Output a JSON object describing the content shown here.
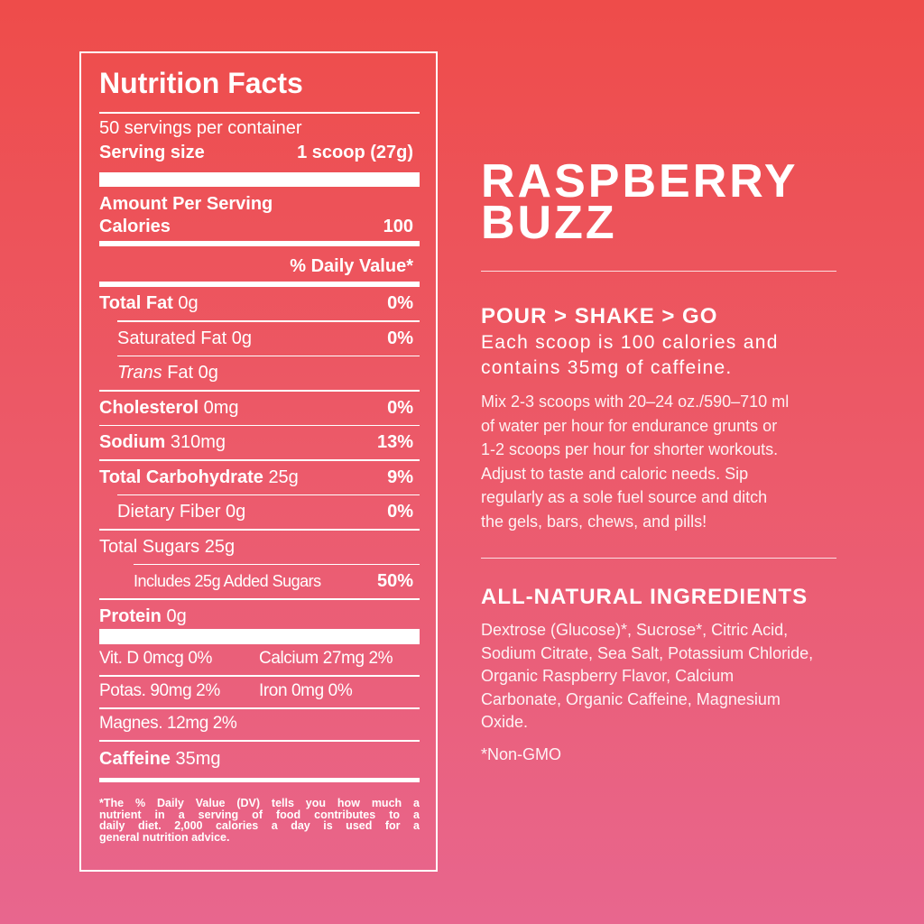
{
  "label": {
    "title": "Nutrition Facts",
    "servings": "50 servings per container",
    "serving_size_label": "Serving size",
    "serving_size": "1 scoop (27g)",
    "amount_per_serving": "Amount Per Serving",
    "calories_label": "Calories",
    "calories": "100",
    "daily_value_header": "% Daily Value*",
    "nutrients": [
      {
        "name": "Total Fat",
        "amount": "0g",
        "dv": "0%"
      },
      {
        "name": "Saturated Fat",
        "amount": "0g",
        "dv": "0%"
      },
      {
        "name_italic": "Trans",
        "name": "Fat",
        "amount": "0g"
      },
      {
        "name": "Cholesterol",
        "amount": "0mg",
        "dv": "0%"
      },
      {
        "name": "Sodium",
        "amount": "310mg",
        "dv": "13%"
      },
      {
        "name": "Total Carbohydrate",
        "amount": "25g",
        "dv": "9%"
      },
      {
        "name": "Dietary Fiber",
        "amount": "0g",
        "dv": "0%"
      },
      {
        "name": "Total Sugars",
        "amount": "25g"
      },
      {
        "name": "Includes 25g Added Sugars",
        "dv": "50%"
      },
      {
        "name": "Protein",
        "amount": "0g"
      }
    ],
    "minerals": [
      [
        "Vit. D 0mcg 0%",
        "Calcium 27mg 2%"
      ],
      [
        "Potas.  90mg 2%",
        "Iron 0mg 0%"
      ],
      [
        "Magnes. 12mg 2%"
      ]
    ],
    "caffeine_label": "Caffeine",
    "caffeine": "35mg",
    "footnote": [
      "*The % Daily Value (DV) tells you how much a",
      "nutrient in a serving of food contributes to a",
      "daily diet. 2,000 calories a day is used for a",
      "general nutrition advice."
    ]
  },
  "product": {
    "title": [
      "RASPBERRY",
      "BUZZ"
    ],
    "directions_heading": "POUR > SHAKE > GO",
    "summary": [
      "Each scoop is 100 calories and",
      "contains 35mg of caffeine."
    ],
    "instructions": [
      "Mix 2-3 scoops with 20–24 oz./590–710 ml",
      "of water per hour for endurance grunts or",
      "1-2 scoops per hour for shorter workouts.",
      "Adjust to taste and caloric needs. Sip",
      "regularly as a sole fuel source and ditch",
      "the gels, bars, chews, and pills!"
    ],
    "ingredients_heading": "ALL-NATURAL INGREDIENTS",
    "ingredients": [
      "Dextrose (Glucose)*, Sucrose*, Citric Acid,",
      "Sodium Citrate, Sea Salt, Potassium Chloride,",
      "Organic Raspberry Flavor, Calcium",
      "Carbonate, Organic Caffeine, Magnesium",
      "Oxide."
    ],
    "note": "*Non-GMO"
  }
}
